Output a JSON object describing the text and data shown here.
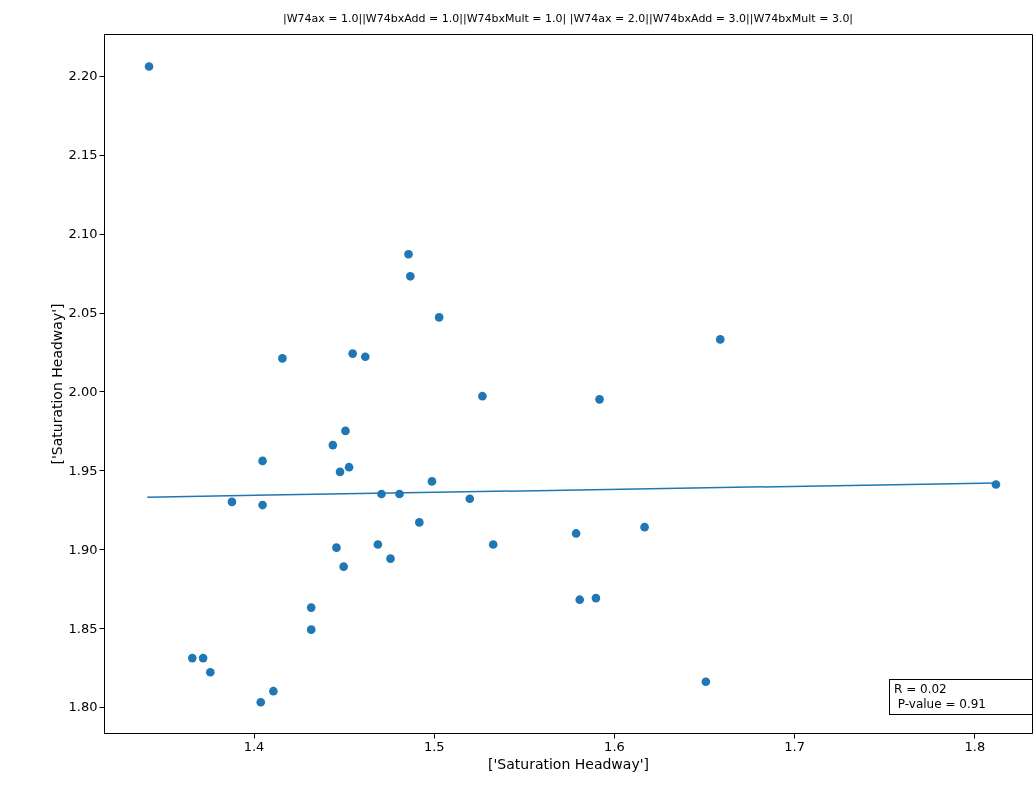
{
  "chart_data": {
    "type": "scatter",
    "title": "|W74ax = 1.0||W74bxAdd = 1.0||W74bxMult = 1.0| |W74ax = 2.0||W74bxAdd = 3.0||W74bxMult = 3.0|",
    "xlabel": "['Saturation Headway']",
    "ylabel": "['Saturation Headway']",
    "xlim": [
      1.317,
      1.832
    ],
    "ylim": [
      1.7835,
      2.2266
    ],
    "xticks": [
      1.4,
      1.5,
      1.6,
      1.7,
      1.8
    ],
    "yticks": [
      {
        "value": 1.8,
        "label": "1.80"
      },
      1.85,
      {
        "value": 1.9,
        "label": "1.90"
      },
      1.95,
      {
        "value": 2.0,
        "label": "2.00"
      },
      2.05,
      {
        "value": 2.1,
        "label": "2.10"
      },
      2.15,
      {
        "value": 2.2,
        "label": "2.20"
      }
    ],
    "grid": false,
    "annotations": [
      "R = 0.02",
      " P-value = 0.91"
    ],
    "series": [
      {
        "marker": "circle",
        "color": "#1f77b4",
        "x": [
          1.342,
          1.486,
          1.487,
          1.503,
          1.659,
          1.416,
          1.455,
          1.462,
          1.527,
          1.592,
          1.451,
          1.444,
          1.405,
          1.453,
          1.448,
          1.499,
          1.388,
          1.405,
          1.471,
          1.481,
          1.52,
          1.812,
          1.492,
          1.617,
          1.579,
          1.533,
          1.469,
          1.446,
          1.476,
          1.45,
          1.581,
          1.59,
          1.432,
          1.432,
          1.366,
          1.372,
          1.376,
          1.411,
          1.404,
          1.651
        ],
        "values": [
          2.206,
          2.087,
          2.073,
          2.047,
          2.033,
          2.021,
          2.024,
          2.022,
          1.997,
          1.995,
          1.975,
          1.966,
          1.956,
          1.952,
          1.949,
          1.943,
          1.93,
          1.928,
          1.935,
          1.935,
          1.932,
          1.941,
          1.917,
          1.914,
          1.91,
          1.903,
          1.903,
          1.901,
          1.894,
          1.889,
          1.868,
          1.869,
          1.863,
          1.849,
          1.831,
          1.831,
          1.822,
          1.81,
          1.803,
          1.816
        ]
      },
      {
        "type": "line",
        "color": "#1f77b4",
        "x": [
          1.341,
          1.812
        ],
        "values": [
          1.933,
          1.942
        ]
      }
    ]
  }
}
